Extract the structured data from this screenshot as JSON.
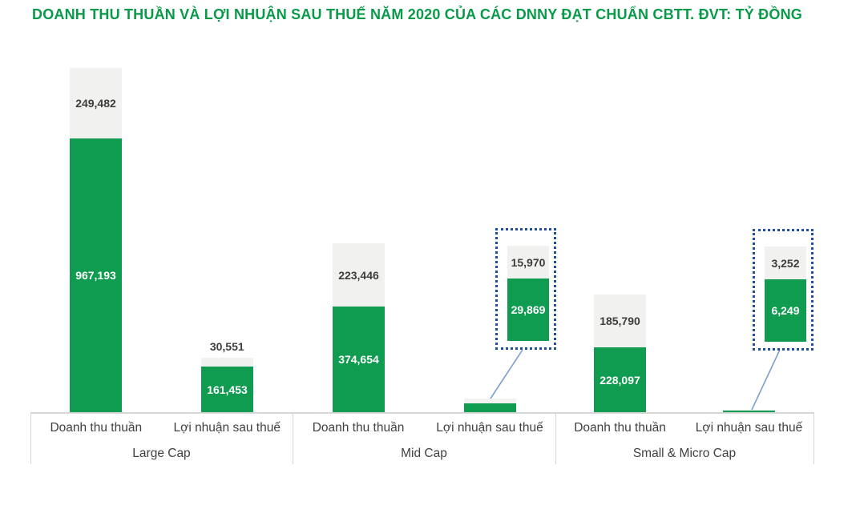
{
  "title": "DOANH THU THUẦN VÀ LỢI NHUẬN SAU THUẾ NĂM 2020 CỦA CÁC DNNY ĐẠT CHUẨN CBTT. ĐVT: TỶ ĐỒNG",
  "colors": {
    "title_green": "#089a49",
    "bar_green": "#0f9b50",
    "bar_gray": "#f1f1ef",
    "label_dark": "#3d3d3d",
    "label_light": "#ffffff",
    "callout_border": "#1f4e9d",
    "connector_blue": "#7b9fd0",
    "axis_line": "#d6d6d4"
  },
  "chart_data": {
    "type": "bar",
    "stacked": true,
    "grid": false,
    "legend": false,
    "title": "DOANH THU THUẦN VÀ LỢI NHUẬN SAU THUẾ NĂM 2020 CỦA CÁC DNNY ĐẠT CHUẨN CBTT",
    "unit_note": "ĐVT: TỶ ĐỒNG",
    "ylim": [
      0,
      1216675
    ],
    "groups": [
      {
        "label": "Large Cap",
        "bars": [
          {
            "category": "Doanh thu thuần",
            "segments": {
              "green": 967193,
              "gray": 249482
            },
            "labels": {
              "green": "967,193",
              "gray": "249,482"
            },
            "callout": false
          },
          {
            "category": "Lợi nhuận sau thuế",
            "segments": {
              "green": 161453,
              "gray": 30551
            },
            "labels": {
              "green": "161,453",
              "gray": "30,551"
            },
            "callout": false
          }
        ]
      },
      {
        "label": "Mid Cap",
        "bars": [
          {
            "category": "Doanh thu thuần",
            "segments": {
              "green": 374654,
              "gray": 223446
            },
            "labels": {
              "green": "374,654",
              "gray": "223,446"
            },
            "callout": false
          },
          {
            "category": "Lợi nhuận sau thuế",
            "segments": {
              "green": 29869,
              "gray": 15970
            },
            "labels": {
              "green": "29,869",
              "gray": "15,970"
            },
            "callout": true
          }
        ]
      },
      {
        "label": "Small & Micro Cap",
        "bars": [
          {
            "category": "Doanh thu thuần",
            "segments": {
              "green": 228097,
              "gray": 185790
            },
            "labels": {
              "green": "228,097",
              "gray": "185,790"
            },
            "callout": false
          },
          {
            "category": "Lợi nhuận sau thuế",
            "segments": {
              "green": 6249,
              "gray": 3252
            },
            "labels": {
              "green": "6,249",
              "gray": "3,252"
            },
            "callout": true
          }
        ]
      }
    ]
  }
}
